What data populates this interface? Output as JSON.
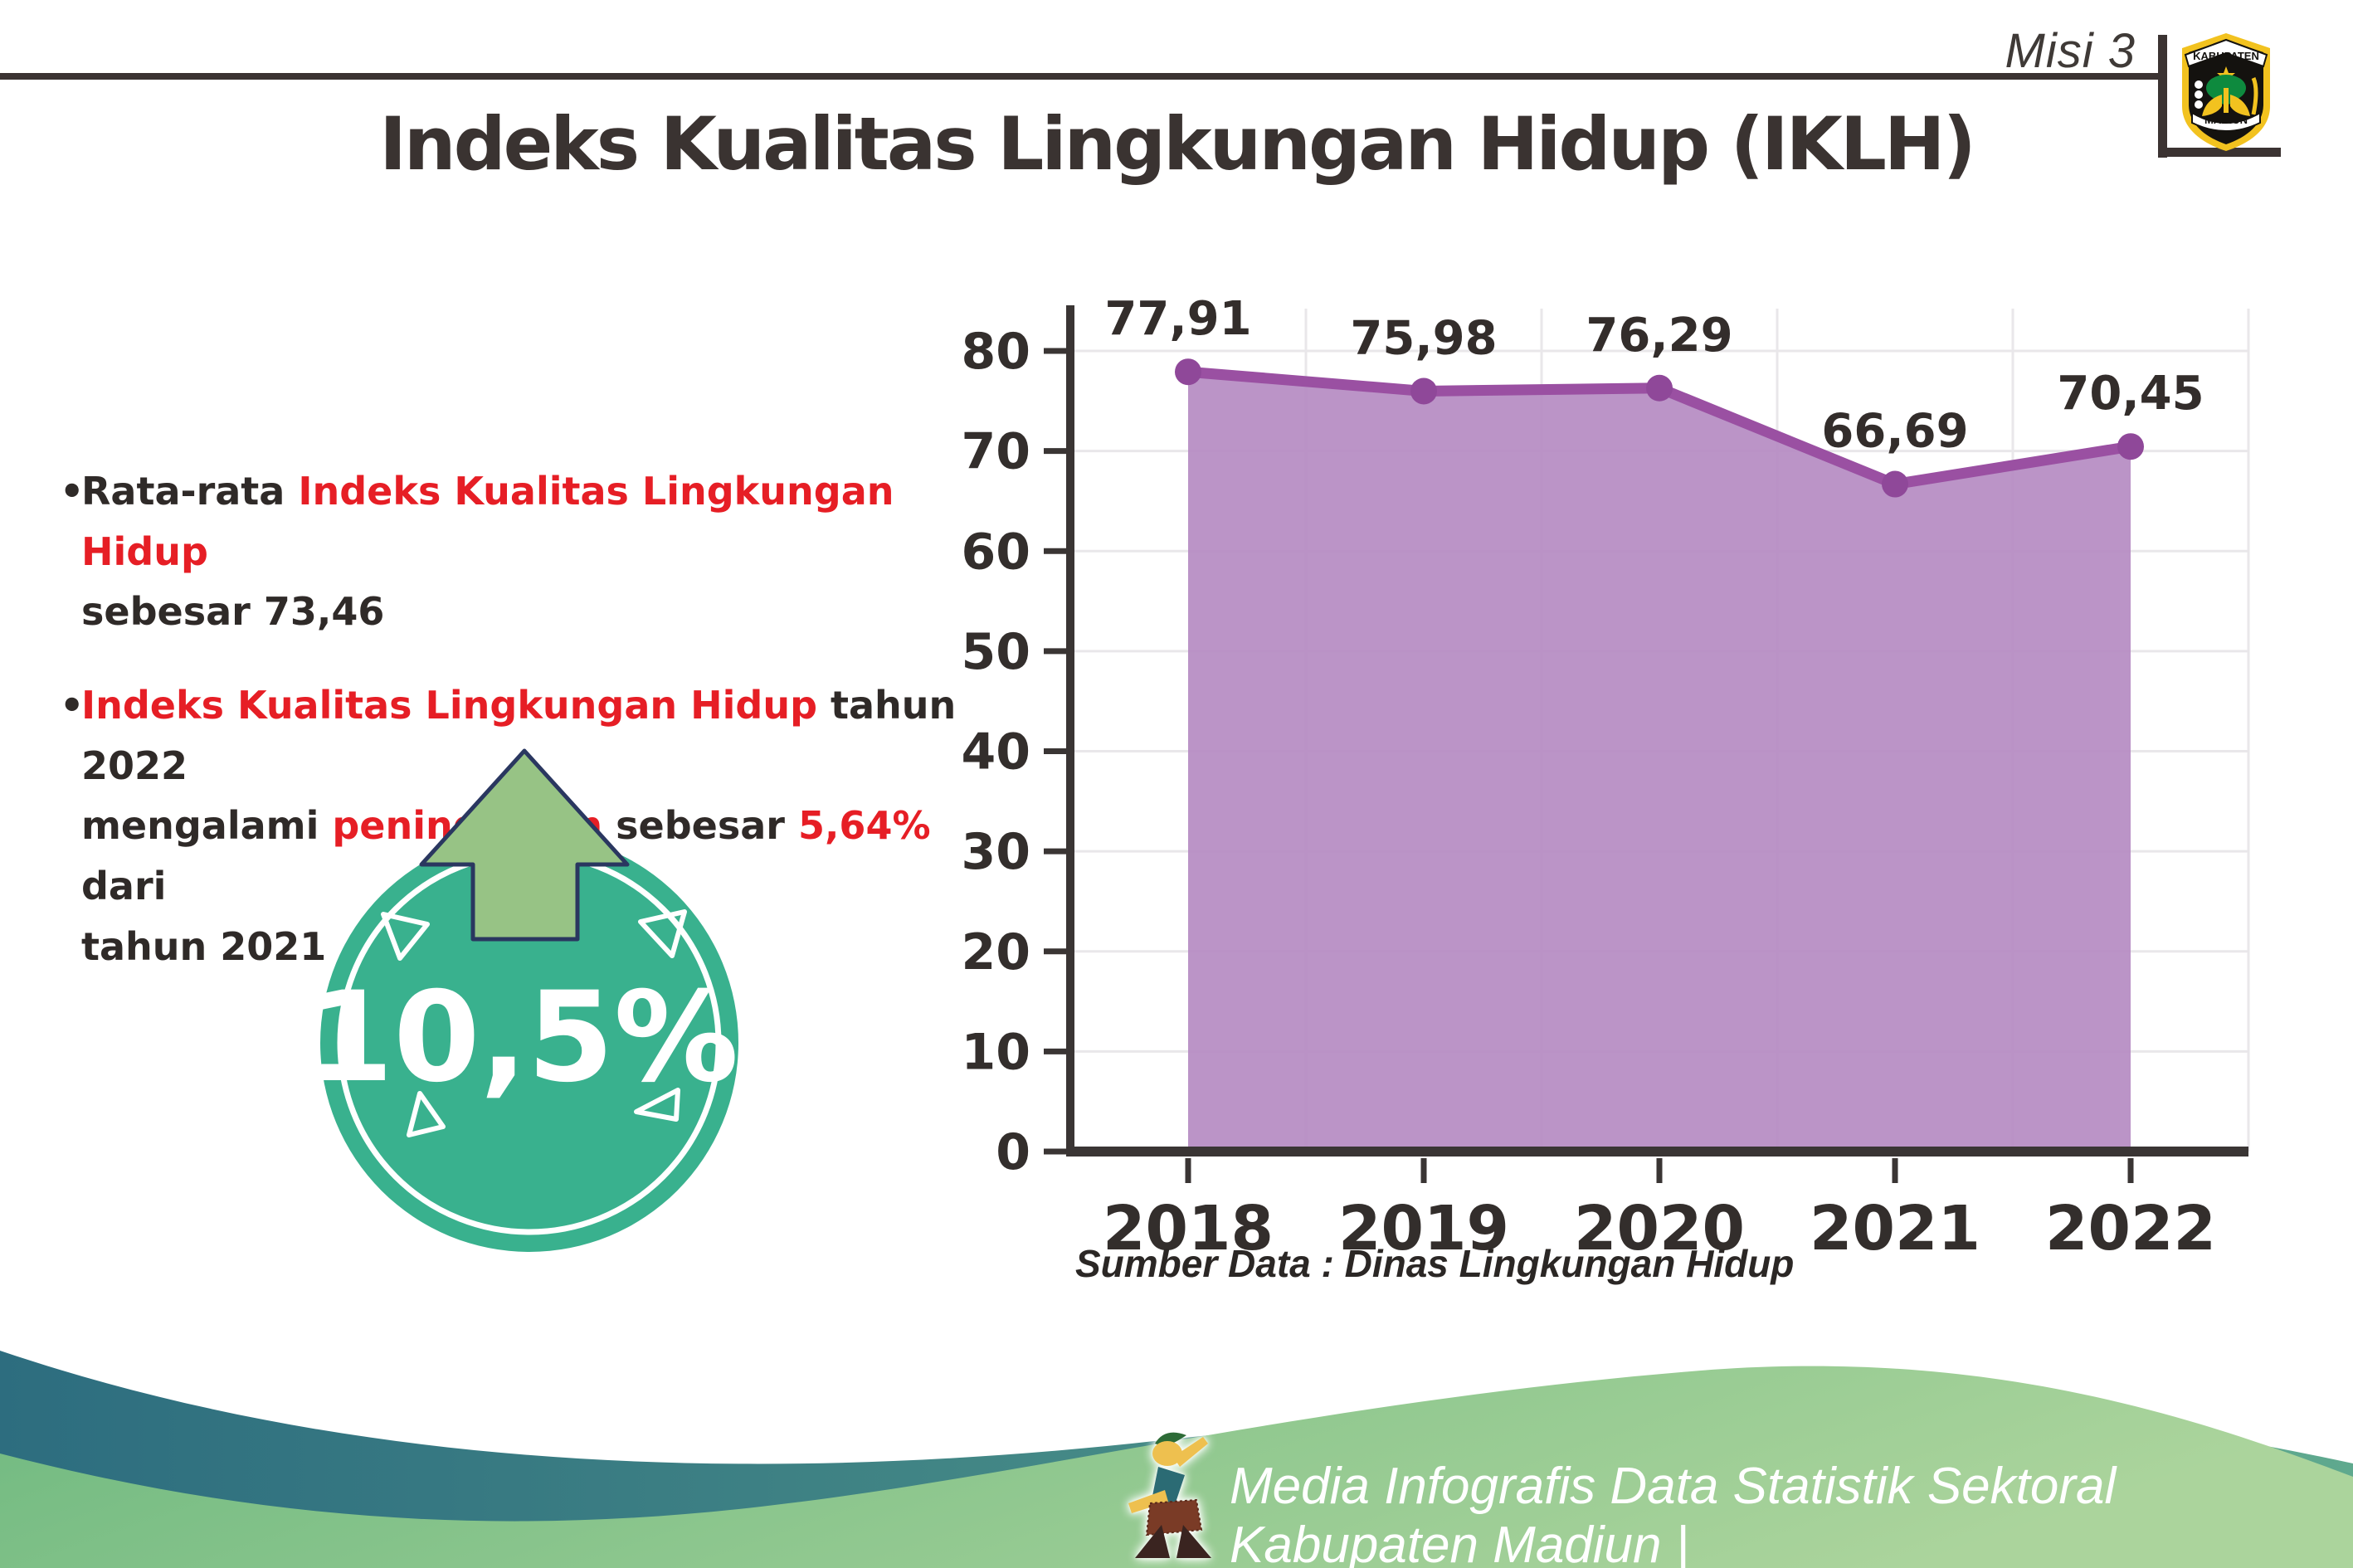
{
  "header": {
    "misi": "Misi 3",
    "logo_top": "KABUPATEN",
    "logo_bottom": "MADIUN"
  },
  "page": {
    "title": "Indeks Kualitas Lingkungan Hidup (IKLH)"
  },
  "bullets": [
    {
      "segments": [
        {
          "t": "Rata-rata ",
          "c": "dark"
        },
        {
          "t": "Indeks Kualitas Lingkungan Hidup",
          "c": "red"
        },
        {
          "br": true
        },
        {
          "t": "sebesar 73,46",
          "c": "dark"
        }
      ]
    },
    {
      "segments": [
        {
          "t": "Indeks Kualitas Lingkungan Hidup",
          "c": "red"
        },
        {
          "t": " tahun 2022",
          "c": "dark"
        },
        {
          "br": true
        },
        {
          "t": "mengalami ",
          "c": "dark"
        },
        {
          "t": "peningkatan",
          "c": "red"
        },
        {
          "t": " sebesar ",
          "c": "dark"
        },
        {
          "t": "5,64%",
          "c": "red"
        },
        {
          "t": " dari",
          "c": "dark"
        },
        {
          "br": true
        },
        {
          "t": "tahun 2021",
          "c": "dark"
        }
      ]
    }
  ],
  "badge": {
    "value": "10,5%",
    "circle_color": "#39b18e",
    "arrow_color": "#97c385",
    "arrow_outline": "#2a3760"
  },
  "chart_data": {
    "type": "area",
    "title": "",
    "xlabel": "",
    "ylabel": "",
    "categories": [
      "2018",
      "2019",
      "2020",
      "2021",
      "2022"
    ],
    "values": [
      77.91,
      75.98,
      76.29,
      66.69,
      70.45
    ],
    "value_labels": [
      "77,91",
      "75,98",
      "76,29",
      "66,69",
      "70,45"
    ],
    "ylim": [
      0,
      80
    ],
    "ytick_step": 10,
    "grid": true,
    "legend": false,
    "area_color": "#b58bc2",
    "line_color": "#9a50a2",
    "marker_color": "#8f4899",
    "axis_color": "#3a3534",
    "gridline_color": "#e9e7ea",
    "tick_label_color": "#332e2c",
    "data_label_color": "#332d2b"
  },
  "source": "Sumber Data : Dinas Lingkungan Hidup",
  "footer": {
    "text": "Media Infografis Data Statistik Sektoral Kabupaten Madiun |",
    "teal_left": "#2d6d7f",
    "teal_right": "#5fa98e",
    "green_left": "#6fb980",
    "green_right": "#abd49c"
  },
  "colors": {
    "text_dark": "#2f2a28",
    "accent_red": "#e61e25",
    "rule_dark": "#3b3332"
  }
}
